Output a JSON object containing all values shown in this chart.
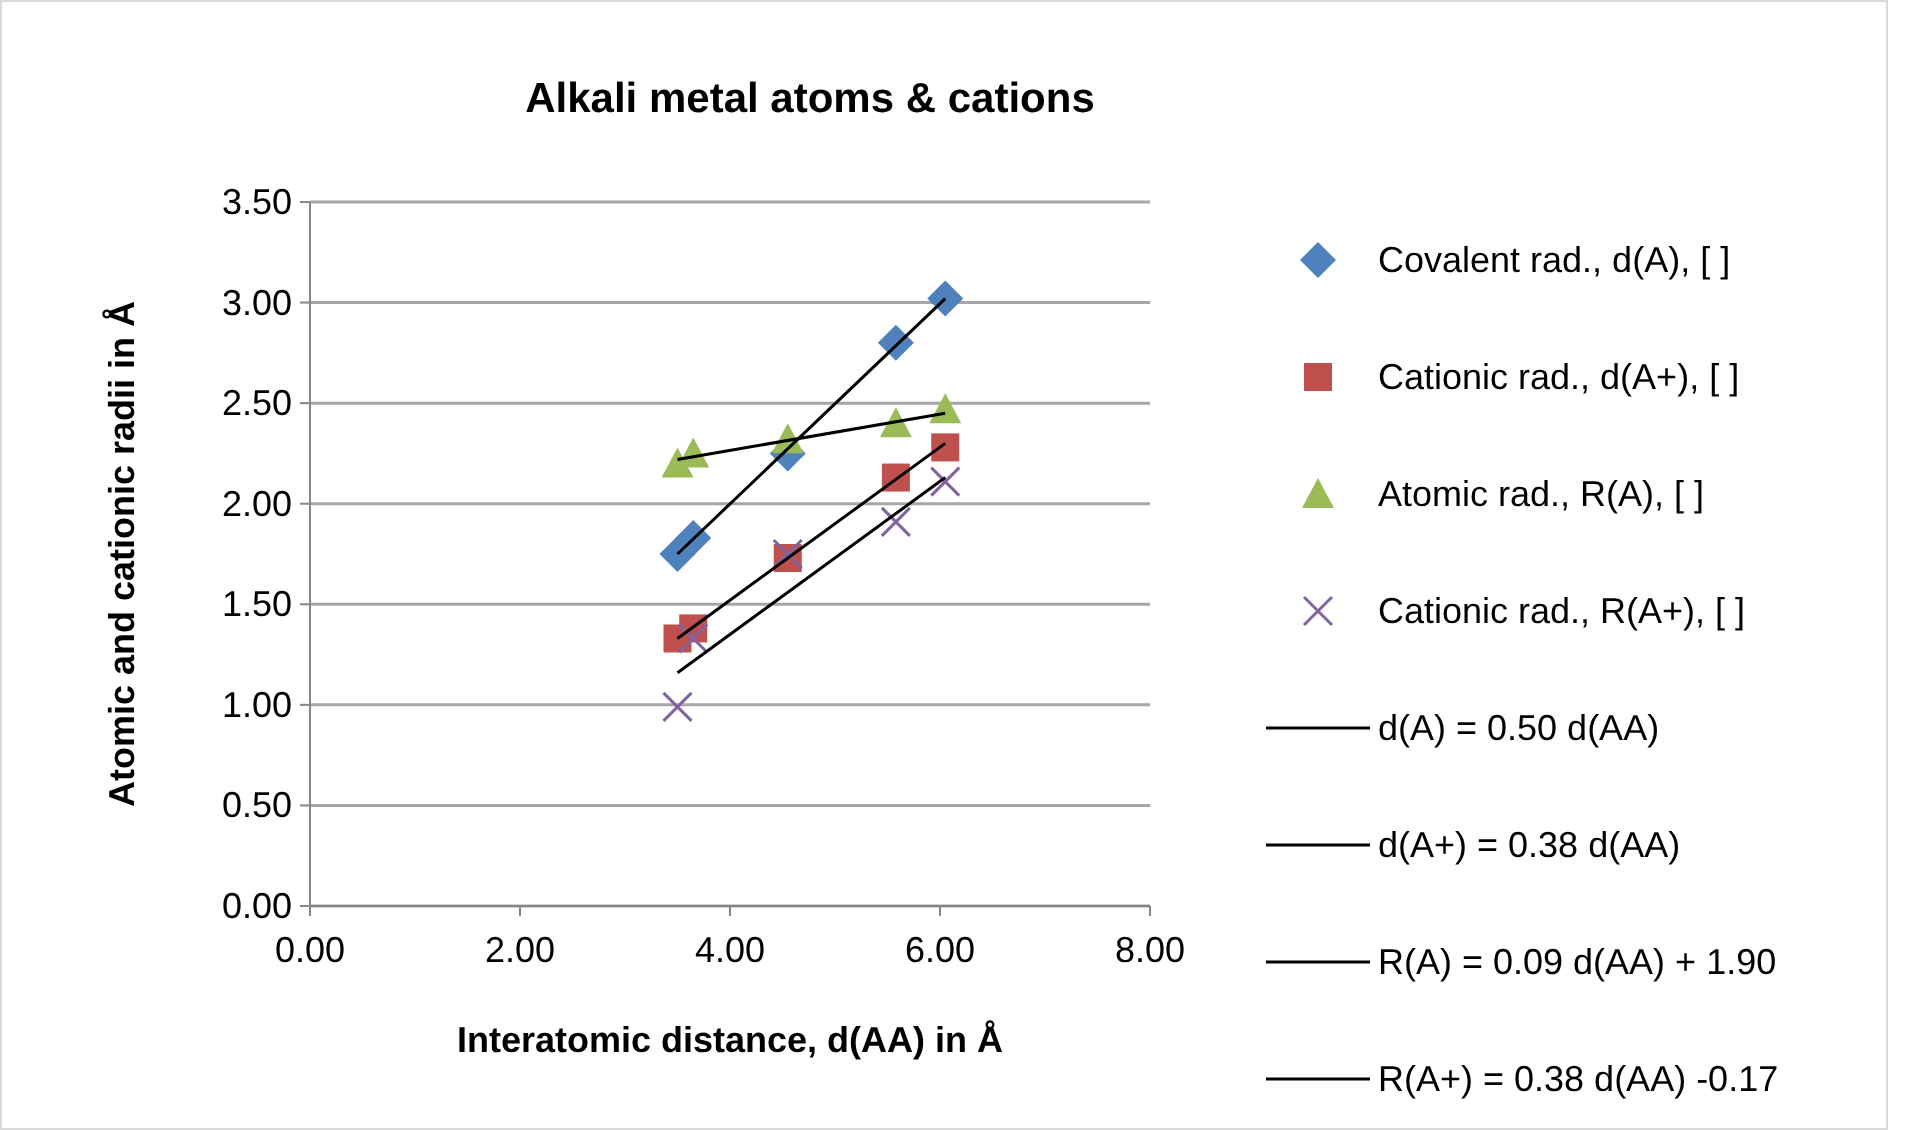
{
  "chart_data": {
    "type": "scatter",
    "title": "Alkali metal atoms & cations",
    "xlabel": "Interatomic distance, d(AA) in Å",
    "ylabel": "Atomic and cationic radii in Å",
    "xlim": [
      0,
      8
    ],
    "xticks": [
      {
        "value": 0,
        "label": "0.00"
      },
      {
        "value": 2,
        "label": "2.00"
      },
      {
        "value": 4,
        "label": "4.00"
      },
      {
        "value": 6,
        "label": "6.00"
      },
      {
        "value": 8,
        "label": "8.00"
      }
    ],
    "ylim": [
      0,
      3.5
    ],
    "yticks": [
      {
        "value": 0,
        "label": "0.00"
      },
      {
        "value": 0.5,
        "label": "0.50"
      },
      {
        "value": 1,
        "label": "1.00"
      },
      {
        "value": 1.5,
        "label": "1.50"
      },
      {
        "value": 2,
        "label": "2.00"
      },
      {
        "value": 2.5,
        "label": "2.50"
      },
      {
        "value": 3,
        "label": "3.00"
      },
      {
        "value": 3.5,
        "label": "3.50"
      }
    ],
    "grid": "y",
    "legend": "right",
    "series": [
      {
        "name": "Covalent rad., d(A), [ ]",
        "color": "#4f81bd",
        "marker": "diamond",
        "x": [
          3.5,
          3.65,
          4.55,
          5.58,
          6.05
        ],
        "values": [
          1.75,
          1.83,
          2.25,
          2.8,
          3.02
        ]
      },
      {
        "name": "Cationic rad., d(A+), [ ]",
        "color": "#c0504d",
        "marker": "square",
        "x": [
          3.5,
          3.65,
          4.55,
          5.58,
          6.05
        ],
        "values": [
          1.33,
          1.38,
          1.73,
          2.13,
          2.28
        ]
      },
      {
        "name": "Atomic rad., R(A), [ ]",
        "color": "#9bbb59",
        "marker": "triangle",
        "x": [
          3.5,
          3.65,
          4.55,
          5.58,
          6.05
        ],
        "values": [
          2.2,
          2.25,
          2.32,
          2.4,
          2.47
        ]
      },
      {
        "name": "Cationic rad., R(A+), [ ]",
        "color": "#8064a2",
        "marker": "cross",
        "x": [
          3.5,
          3.65,
          4.55,
          5.58,
          6.05
        ],
        "values": [
          0.99,
          1.33,
          1.75,
          1.91,
          2.11
        ]
      },
      {
        "name": "d(A) = 0.50 d(AA)",
        "type": "line",
        "color": "#000000",
        "x": [
          3.5,
          6.05
        ],
        "values": [
          1.75,
          3.02
        ]
      },
      {
        "name": "d(A+) = 0.38 d(AA)",
        "type": "line",
        "color": "#000000",
        "x": [
          3.5,
          6.05
        ],
        "values": [
          1.33,
          2.3
        ]
      },
      {
        "name": "R(A) = 0.09 d(AA) + 1.90",
        "type": "line",
        "color": "#000000",
        "x": [
          3.5,
          6.05
        ],
        "values": [
          2.22,
          2.45
        ]
      },
      {
        "name": "R(A+) = 0.38 d(AA) -0.17",
        "type": "line",
        "color": "#000000",
        "x": [
          3.5,
          6.05
        ],
        "values": [
          1.16,
          2.13
        ]
      }
    ]
  }
}
